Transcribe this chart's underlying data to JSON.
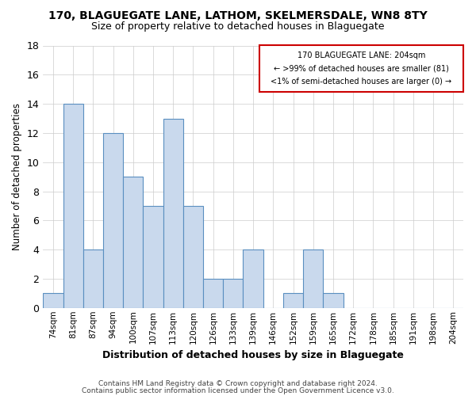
{
  "title_line1": "170, BLAGUEGATE LANE, LATHOM, SKELMERSDALE, WN8 8TY",
  "title_line2": "Size of property relative to detached houses in Blaguegate",
  "xlabel": "Distribution of detached houses by size in Blaguegate",
  "ylabel": "Number of detached properties",
  "categories": [
    "74sqm",
    "81sqm",
    "87sqm",
    "94sqm",
    "100sqm",
    "107sqm",
    "113sqm",
    "120sqm",
    "126sqm",
    "133sqm",
    "139sqm",
    "146sqm",
    "152sqm",
    "159sqm",
    "165sqm",
    "172sqm",
    "178sqm",
    "185sqm",
    "191sqm",
    "198sqm",
    "204sqm"
  ],
  "values": [
    1,
    14,
    4,
    12,
    9,
    7,
    13,
    7,
    2,
    2,
    4,
    0,
    1,
    4,
    1,
    0,
    0,
    0,
    0,
    0,
    0
  ],
  "bar_color": "#c9d9ed",
  "bar_edge_color": "#5a8fc0",
  "ylim": [
    0,
    18
  ],
  "yticks": [
    0,
    2,
    4,
    6,
    8,
    10,
    12,
    14,
    16,
    18
  ],
  "annotation_line1": "170 BLAGUEGATE LANE: 204sqm",
  "annotation_line2": "← >99% of detached houses are smaller (81)",
  "annotation_line3": "<1% of semi-detached houses are larger (0) →",
  "annotation_box_color": "#ffffff",
  "annotation_box_edge_color": "#cc0000",
  "footer_line1": "Contains HM Land Registry data © Crown copyright and database right 2024.",
  "footer_line2": "Contains public sector information licensed under the Open Government Licence v3.0.",
  "background_color": "#ffffff",
  "grid_color": "#cccccc"
}
